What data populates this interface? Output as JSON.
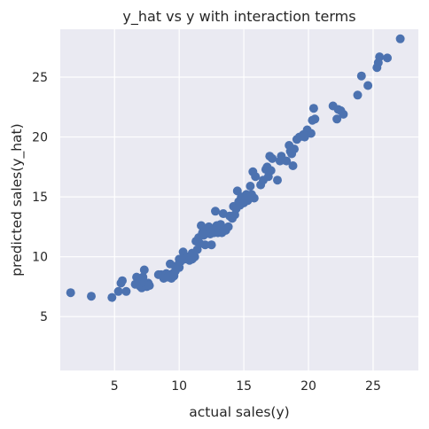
{
  "chart_data": {
    "type": "scatter",
    "title": "y_hat vs y with interaction terms",
    "xlabel": "actual sales(y)",
    "ylabel": "predicted sales(y_hat)",
    "xlim": [
      0.8,
      28.5
    ],
    "ylim": [
      0.5,
      29.0
    ],
    "xticks": [
      5,
      10,
      15,
      20,
      25
    ],
    "yticks": [
      5,
      10,
      15,
      20,
      25
    ],
    "grid": true,
    "background": "#eaeaf2",
    "point_color": "#4c72b0",
    "points": [
      [
        1.6,
        7.0
      ],
      [
        3.2,
        6.7
      ],
      [
        4.8,
        6.6
      ],
      [
        5.3,
        7.1
      ],
      [
        5.5,
        7.8
      ],
      [
        5.6,
        8.0
      ],
      [
        5.9,
        7.1
      ],
      [
        6.6,
        7.7
      ],
      [
        6.7,
        8.3
      ],
      [
        6.9,
        7.9
      ],
      [
        7.0,
        7.5
      ],
      [
        7.1,
        7.4
      ],
      [
        7.2,
        8.3
      ],
      [
        7.3,
        7.8
      ],
      [
        7.3,
        8.9
      ],
      [
        7.5,
        7.5
      ],
      [
        7.6,
        7.8
      ],
      [
        7.7,
        7.6
      ],
      [
        8.4,
        8.5
      ],
      [
        8.6,
        8.5
      ],
      [
        8.8,
        8.2
      ],
      [
        8.9,
        8.4
      ],
      [
        9.0,
        8.6
      ],
      [
        9.1,
        8.3
      ],
      [
        9.2,
        8.5
      ],
      [
        9.3,
        9.4
      ],
      [
        9.4,
        8.2
      ],
      [
        9.5,
        8.6
      ],
      [
        9.6,
        8.4
      ],
      [
        9.7,
        9.2
      ],
      [
        9.7,
        8.8
      ],
      [
        9.9,
        9.3
      ],
      [
        10.0,
        9.1
      ],
      [
        10.0,
        9.8
      ],
      [
        10.1,
        9.6
      ],
      [
        10.3,
        10.4
      ],
      [
        10.4,
        9.8
      ],
      [
        10.6,
        10.0
      ],
      [
        10.8,
        9.7
      ],
      [
        11.0,
        9.8
      ],
      [
        11.0,
        10.3
      ],
      [
        11.2,
        10.0
      ],
      [
        11.3,
        11.3
      ],
      [
        11.4,
        10.6
      ],
      [
        11.5,
        11.6
      ],
      [
        11.6,
        11.1
      ],
      [
        11.7,
        12.6
      ],
      [
        11.8,
        12.0
      ],
      [
        11.9,
        11.8
      ],
      [
        12.0,
        11.0
      ],
      [
        12.1,
        12.3
      ],
      [
        12.3,
        12.5
      ],
      [
        12.4,
        11.9
      ],
      [
        12.5,
        11.0
      ],
      [
        12.6,
        12.2
      ],
      [
        12.7,
        12.0
      ],
      [
        12.8,
        13.8
      ],
      [
        12.9,
        12.6
      ],
      [
        13.0,
        12.0
      ],
      [
        13.1,
        12.3
      ],
      [
        13.2,
        12.7
      ],
      [
        13.3,
        12.0
      ],
      [
        13.4,
        13.6
      ],
      [
        13.6,
        12.2
      ],
      [
        13.8,
        12.5
      ],
      [
        13.9,
        13.4
      ],
      [
        14.1,
        13.2
      ],
      [
        14.2,
        14.2
      ],
      [
        14.3,
        13.5
      ],
      [
        14.4,
        14.0
      ],
      [
        14.5,
        15.5
      ],
      [
        14.6,
        14.6
      ],
      [
        14.7,
        14.3
      ],
      [
        14.8,
        15.0
      ],
      [
        14.9,
        14.8
      ],
      [
        15.0,
        14.5
      ],
      [
        15.2,
        15.2
      ],
      [
        15.3,
        14.7
      ],
      [
        15.4,
        15.0
      ],
      [
        15.5,
        15.9
      ],
      [
        15.6,
        15.2
      ],
      [
        15.7,
        17.1
      ],
      [
        15.8,
        14.9
      ],
      [
        15.9,
        16.7
      ],
      [
        16.3,
        16.0
      ],
      [
        16.5,
        16.4
      ],
      [
        16.7,
        17.3
      ],
      [
        16.8,
        17.5
      ],
      [
        16.9,
        16.7
      ],
      [
        17.0,
        18.4
      ],
      [
        17.1,
        17.2
      ],
      [
        17.2,
        18.2
      ],
      [
        17.6,
        16.4
      ],
      [
        17.8,
        18.0
      ],
      [
        17.9,
        18.4
      ],
      [
        18.3,
        18.0
      ],
      [
        18.5,
        19.3
      ],
      [
        18.6,
        18.8
      ],
      [
        18.7,
        18.6
      ],
      [
        18.8,
        17.6
      ],
      [
        18.9,
        19.0
      ],
      [
        19.1,
        19.8
      ],
      [
        19.3,
        20.0
      ],
      [
        19.6,
        20.2
      ],
      [
        19.7,
        20.0
      ],
      [
        19.9,
        20.6
      ],
      [
        20.2,
        20.3
      ],
      [
        20.3,
        21.4
      ],
      [
        20.4,
        22.4
      ],
      [
        20.5,
        21.5
      ],
      [
        21.9,
        22.6
      ],
      [
        22.2,
        21.5
      ],
      [
        22.3,
        22.3
      ],
      [
        22.5,
        22.2
      ],
      [
        22.7,
        21.9
      ],
      [
        23.8,
        23.5
      ],
      [
        24.1,
        25.1
      ],
      [
        24.6,
        24.3
      ],
      [
        25.3,
        25.8
      ],
      [
        25.4,
        26.2
      ],
      [
        25.5,
        26.7
      ],
      [
        26.1,
        26.6
      ],
      [
        27.1,
        28.2
      ]
    ]
  }
}
